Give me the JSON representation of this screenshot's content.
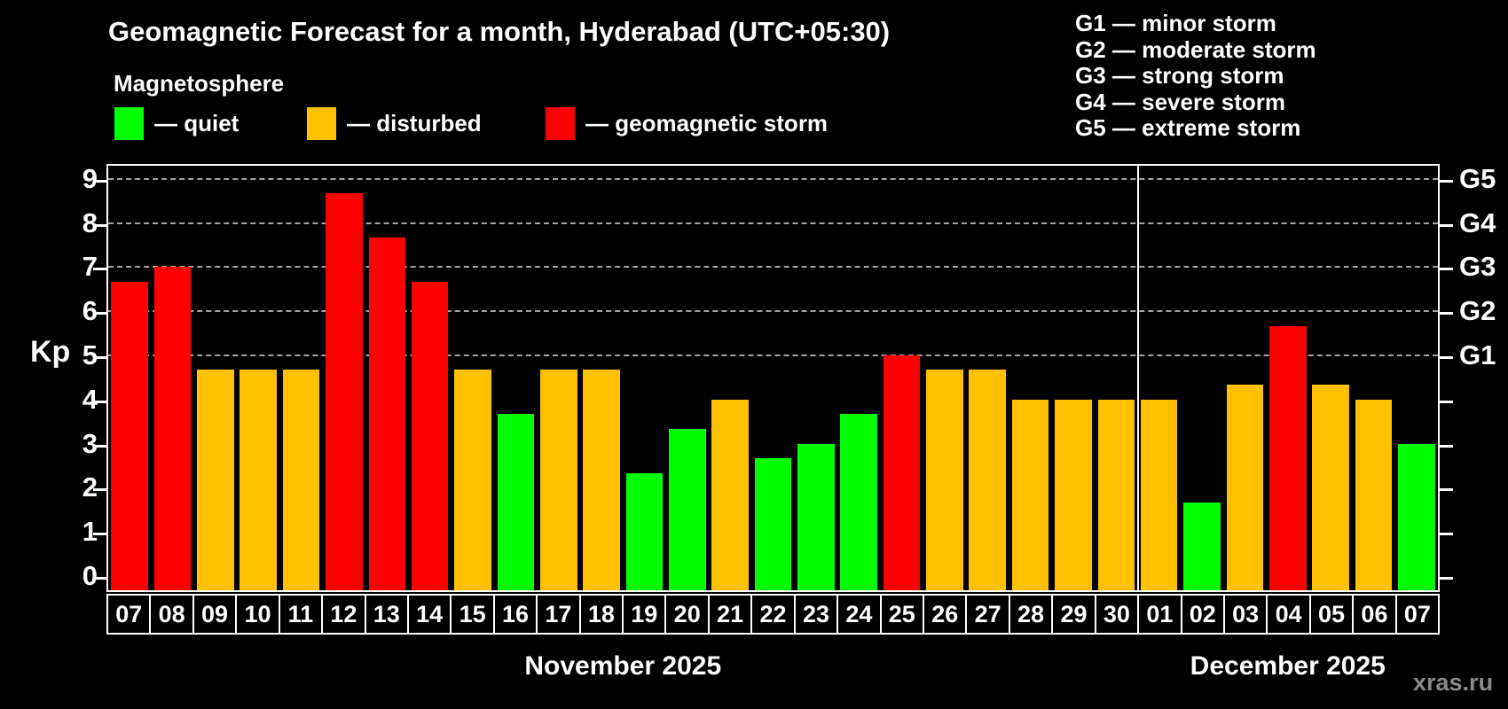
{
  "header": {
    "title": "Geomagnetic Forecast for a month, Hyderabad (UTC+05:30)",
    "subtitle": "Magnetosphere"
  },
  "legend": {
    "items": [
      {
        "name": "quiet",
        "label": "— quiet",
        "color": "#00ff00",
        "x": 129
      },
      {
        "name": "disturbed",
        "label": "— disturbed",
        "color": "#ffc000",
        "x": 346
      },
      {
        "name": "storm",
        "label": "— geomagnetic storm",
        "color": "#ff0000",
        "x": 615
      }
    ]
  },
  "g_scale_legend": [
    "G1 — minor storm",
    "G2 — moderate storm",
    "G3 — strong storm",
    "G4 — severe storm",
    "G5 — extreme storm"
  ],
  "watermark": "xras.ru",
  "chart_data": {
    "type": "bar",
    "ylabel": "Kp",
    "ylim": [
      0,
      9
    ],
    "grid": "dashed horizontal at G-storm levels only",
    "gridlines": [
      5,
      6,
      7,
      8,
      9
    ],
    "yticks": [
      "0",
      "1",
      "2",
      "3",
      "4",
      "5",
      "6",
      "7",
      "8",
      "9"
    ],
    "g_labels": [
      {
        "text": "G1",
        "value": 5
      },
      {
        "text": "G2",
        "value": 6
      },
      {
        "text": "G3",
        "value": 7
      },
      {
        "text": "G4",
        "value": 8
      },
      {
        "text": "G5",
        "value": 9
      }
    ],
    "months": [
      {
        "label": "November 2025",
        "days": 24
      },
      {
        "label": "December 2025",
        "days": 7
      }
    ],
    "categories": [
      "07",
      "08",
      "09",
      "10",
      "11",
      "12",
      "13",
      "14",
      "15",
      "16",
      "17",
      "18",
      "19",
      "20",
      "21",
      "22",
      "23",
      "24",
      "25",
      "26",
      "27",
      "28",
      "29",
      "30",
      "01",
      "02",
      "03",
      "04",
      "05",
      "06",
      "07"
    ],
    "values": [
      6.67,
      7,
      4.67,
      4.67,
      4.67,
      8.67,
      7.67,
      6.67,
      4.67,
      3.67,
      4.67,
      4.67,
      2.33,
      3.33,
      4,
      2.67,
      3,
      3.67,
      5,
      4.67,
      4.67,
      4,
      4,
      4,
      4,
      1.67,
      4.33,
      5.67,
      4.33,
      4,
      3
    ],
    "statuses": [
      "storm",
      "storm",
      "disturbed",
      "disturbed",
      "disturbed",
      "storm",
      "storm",
      "storm",
      "disturbed",
      "quiet",
      "disturbed",
      "disturbed",
      "quiet",
      "quiet",
      "disturbed",
      "quiet",
      "quiet",
      "quiet",
      "storm",
      "disturbed",
      "disturbed",
      "disturbed",
      "disturbed",
      "disturbed",
      "disturbed",
      "quiet",
      "disturbed",
      "storm",
      "disturbed",
      "disturbed",
      "quiet"
    ],
    "colors": {
      "quiet": "#00ff00",
      "disturbed": "#ffc000",
      "storm": "#ff0000"
    }
  }
}
